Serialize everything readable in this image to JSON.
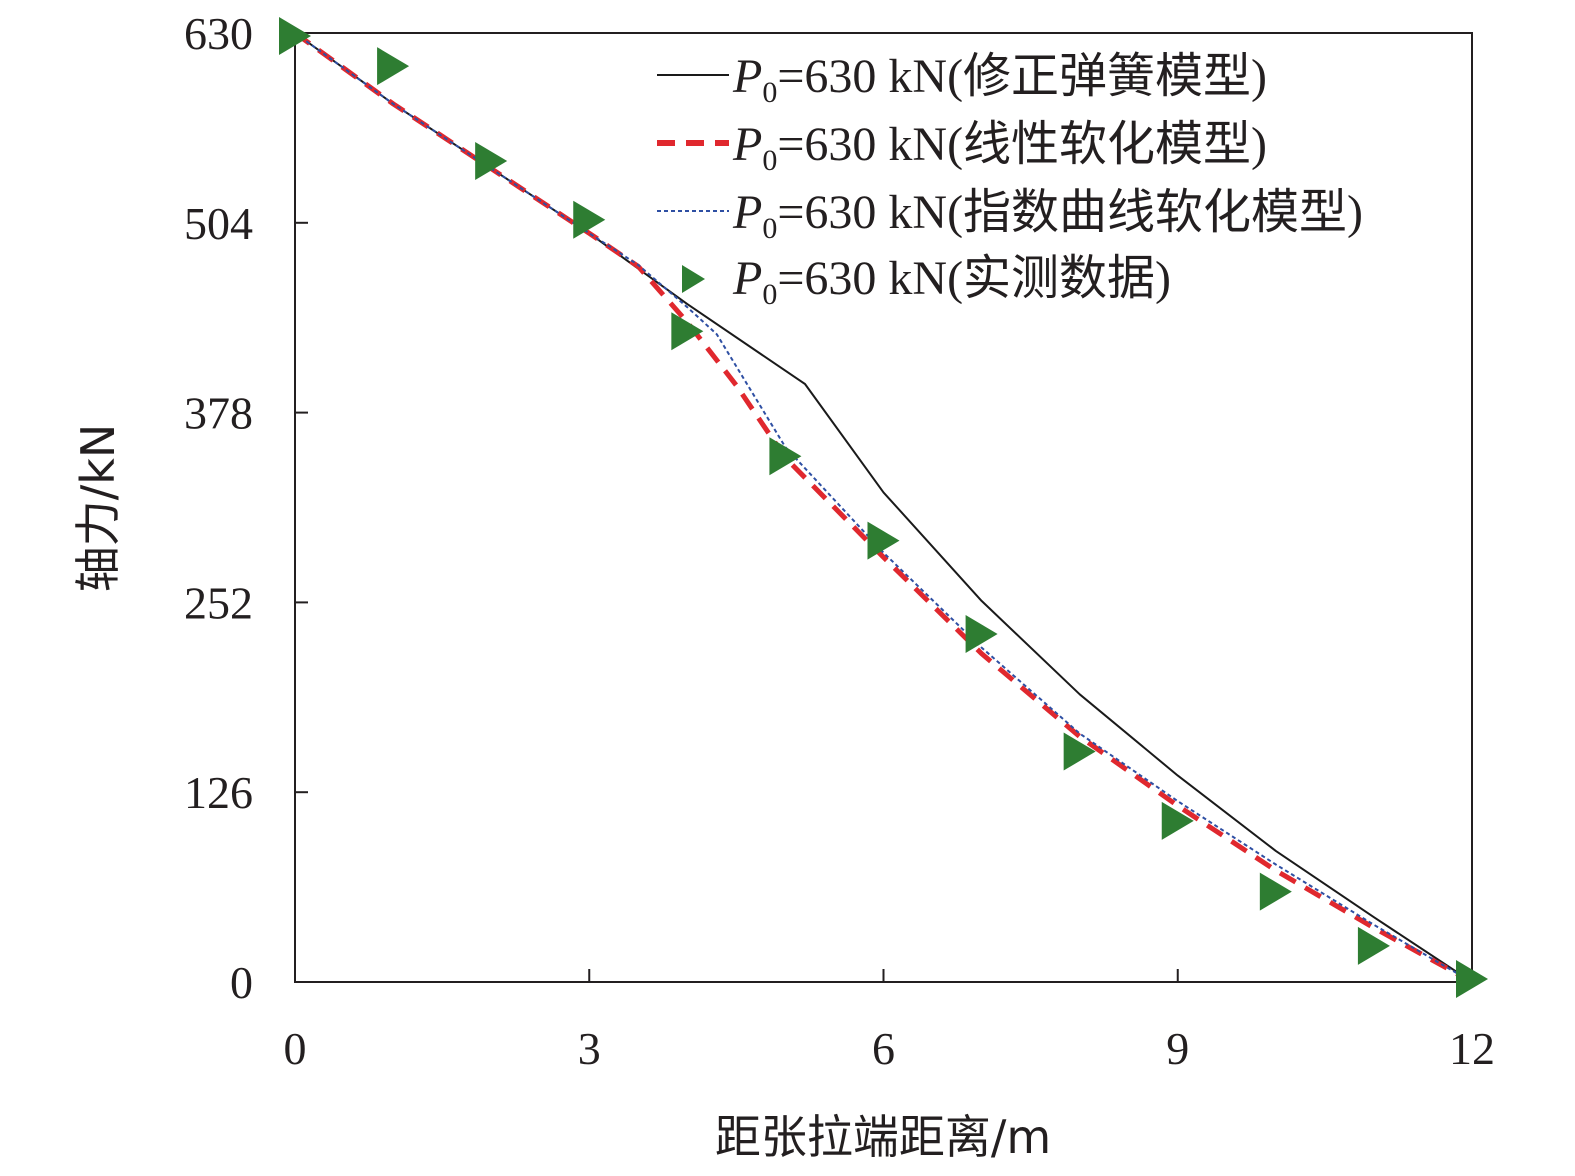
{
  "chart_data": {
    "type": "line",
    "xlabel": "距张拉端距离/m",
    "ylabel": "轴力/kN",
    "xlim": [
      0,
      12
    ],
    "ylim": [
      0,
      630
    ],
    "xticks": [
      "0",
      "3",
      "6",
      "9",
      "12"
    ],
    "yticks": [
      "0",
      "126",
      "252",
      "378",
      "504",
      "630"
    ],
    "xtick_values": [
      0,
      3,
      6,
      9,
      12
    ],
    "ytick_values": [
      0,
      126,
      252,
      378,
      504,
      630
    ],
    "grid": false,
    "legend_position": "top-right",
    "colors": {
      "spring": "#1a1a1a",
      "linear": "#e0282e",
      "exponential": "#2e4fa3",
      "measured": "#2e7d32",
      "axis": "#231f20"
    },
    "legend": {
      "prefix": "P",
      "sub": "0",
      "spring_rest": "=630 kN(修正弹簧模型)",
      "linear_rest": "=630 kN(线性软化模型)",
      "exponential_rest": "=630 kN(指数曲线软化模型)",
      "measured_rest": "=630 kN(实测数据)"
    },
    "series": [
      {
        "key": "spring",
        "name": "P0=630 kN(修正弹簧模型)",
        "style": "solid",
        "x": [
          0,
          1,
          2,
          3,
          4,
          5.2,
          6,
          7,
          8,
          9,
          10,
          11,
          12
        ],
        "y": [
          630,
          583,
          540,
          497,
          450,
          397,
          325,
          253,
          191,
          137,
          87,
          43,
          0
        ]
      },
      {
        "key": "linear",
        "name": "P0=630 kN(线性软化模型)",
        "style": "dashed",
        "x": [
          0,
          1,
          2,
          3,
          3.5,
          4,
          4.5,
          5,
          6,
          7,
          8,
          9,
          10,
          11,
          12
        ],
        "y": [
          630,
          583,
          540,
          497,
          475,
          438,
          396,
          348,
          282,
          218,
          163,
          117,
          74,
          36,
          0
        ]
      },
      {
        "key": "exponential",
        "name": "P0=630 kN(指数曲线软化模型)",
        "style": "dotted",
        "x": [
          0,
          1,
          2,
          3,
          3.5,
          4,
          4.3,
          5,
          6,
          7,
          8,
          9,
          10,
          11,
          12
        ],
        "y": [
          630,
          583,
          540,
          497,
          476,
          448,
          430,
          355,
          285,
          222,
          165,
          120,
          78,
          38,
          0
        ]
      },
      {
        "key": "measured",
        "name": "P0=630 kN(实测数据)",
        "style": "marker",
        "x": [
          0,
          1,
          2,
          3,
          4,
          5,
          6,
          7,
          8,
          9,
          10,
          11,
          12
        ],
        "y": [
          628,
          608,
          545,
          506,
          432,
          349,
          293,
          231,
          153,
          107,
          60,
          24,
          2
        ]
      }
    ]
  }
}
